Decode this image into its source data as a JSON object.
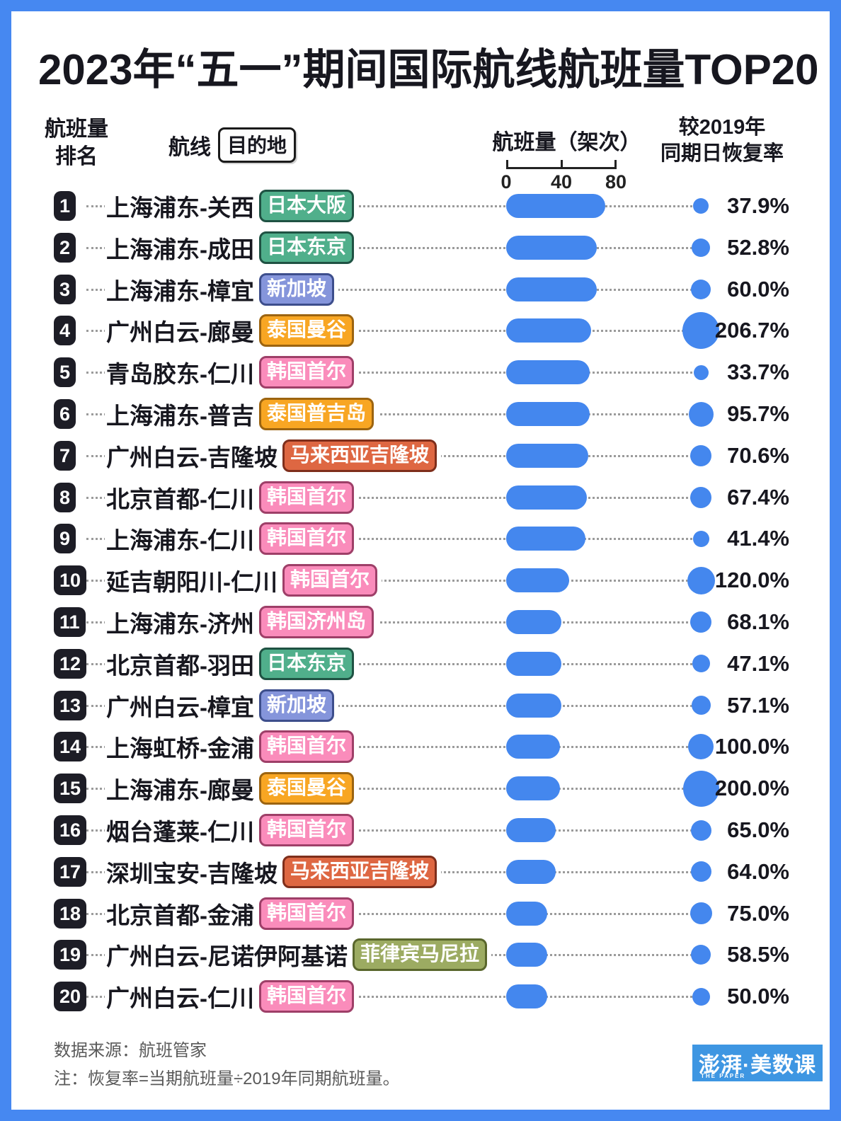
{
  "title": "2023年“五一”期间国际航线航班量TOP20",
  "header": {
    "rank_label_line1": "航班量",
    "rank_label_line2": "排名",
    "route_label": "航线",
    "destination_label": "目的地",
    "flights_label": "航班量（架次）",
    "recovery_label_line1": "较2019年",
    "recovery_label_line2": "同期日恢复率",
    "axis_ticks": [
      "0",
      "40",
      "80"
    ]
  },
  "colors": {
    "frame_blue": "#4688F1",
    "bar_blue": "#4487EE",
    "badge_black": "#1d1d26",
    "leader_gray": "#9b9b9b",
    "logo_blue": "#3E96E2"
  },
  "tag_colors": {
    "japan_green": {
      "bg": "#50AF8B",
      "border": "#1F5243"
    },
    "singapore_blue": {
      "bg": "#8595DB",
      "border": "#3D4E8C"
    },
    "thailand_orange": {
      "bg": "#F8A623",
      "border": "#9C6410"
    },
    "korea_pink": {
      "bg": "#FA8CBB",
      "border": "#9E3F68"
    },
    "malaysia_red": {
      "bg": "#DE6742",
      "border": "#7E2E1B"
    },
    "philippines_olive": {
      "bg": "#9CAB62",
      "border": "#59662C"
    }
  },
  "rows": [
    {
      "rank": "1",
      "route": "上海浦东-关西",
      "destination": "日本大阪",
      "tag_color": "japan_green",
      "flights": 72,
      "recovery_pct": 37.9,
      "recovery_label": "37.9%"
    },
    {
      "rank": "2",
      "route": "上海浦东-成田",
      "destination": "日本东京",
      "tag_color": "japan_green",
      "flights": 66,
      "recovery_pct": 52.8,
      "recovery_label": "52.8%"
    },
    {
      "rank": "3",
      "route": "上海浦东-樟宜",
      "destination": "新加坡",
      "tag_color": "singapore_blue",
      "flights": 66,
      "recovery_pct": 60.0,
      "recovery_label": "60.0%"
    },
    {
      "rank": "4",
      "route": "广州白云-廊曼",
      "destination": "泰国曼谷",
      "tag_color": "thailand_orange",
      "flights": 62,
      "recovery_pct": 206.7,
      "recovery_label": "206.7%"
    },
    {
      "rank": "5",
      "route": "青岛胶东-仁川",
      "destination": "韩国首尔",
      "tag_color": "korea_pink",
      "flights": 61,
      "recovery_pct": 33.7,
      "recovery_label": "33.7%"
    },
    {
      "rank": "6",
      "route": "上海浦东-普吉",
      "destination": "泰国普吉岛",
      "tag_color": "thailand_orange",
      "flights": 61,
      "recovery_pct": 95.7,
      "recovery_label": "95.7%"
    },
    {
      "rank": "7",
      "route": "广州白云-吉隆坡",
      "destination": "马来西亚吉隆坡",
      "tag_color": "malaysia_red",
      "flights": 60,
      "recovery_pct": 70.6,
      "recovery_label": "70.6%"
    },
    {
      "rank": "8",
      "route": "北京首都-仁川",
      "destination": "韩国首尔",
      "tag_color": "korea_pink",
      "flights": 59,
      "recovery_pct": 67.4,
      "recovery_label": "67.4%"
    },
    {
      "rank": "9",
      "route": "上海浦东-仁川",
      "destination": "韩国首尔",
      "tag_color": "korea_pink",
      "flights": 58,
      "recovery_pct": 41.4,
      "recovery_label": "41.4%"
    },
    {
      "rank": "10",
      "route": "延吉朝阳川-仁川",
      "destination": "韩国首尔",
      "tag_color": "korea_pink",
      "flights": 46,
      "recovery_pct": 120.0,
      "recovery_label": "120.0%"
    },
    {
      "rank": "11",
      "route": "上海浦东-济州",
      "destination": "韩国济州岛",
      "tag_color": "korea_pink",
      "flights": 40,
      "recovery_pct": 68.1,
      "recovery_label": "68.1%"
    },
    {
      "rank": "12",
      "route": "北京首都-羽田",
      "destination": "日本东京",
      "tag_color": "japan_green",
      "flights": 40,
      "recovery_pct": 47.1,
      "recovery_label": "47.1%"
    },
    {
      "rank": "13",
      "route": "广州白云-樟宜",
      "destination": "新加坡",
      "tag_color": "singapore_blue",
      "flights": 40,
      "recovery_pct": 57.1,
      "recovery_label": "57.1%"
    },
    {
      "rank": "14",
      "route": "上海虹桥-金浦",
      "destination": "韩国首尔",
      "tag_color": "korea_pink",
      "flights": 39,
      "recovery_pct": 100.0,
      "recovery_label": "100.0%"
    },
    {
      "rank": "15",
      "route": "上海浦东-廊曼",
      "destination": "泰国曼谷",
      "tag_color": "thailand_orange",
      "flights": 39,
      "recovery_pct": 200.0,
      "recovery_label": "200.0%"
    },
    {
      "rank": "16",
      "route": "烟台蓬莱-仁川",
      "destination": "韩国首尔",
      "tag_color": "korea_pink",
      "flights": 36,
      "recovery_pct": 65.0,
      "recovery_label": "65.0%"
    },
    {
      "rank": "17",
      "route": "深圳宝安-吉隆坡",
      "destination": "马来西亚吉隆坡",
      "tag_color": "malaysia_red",
      "flights": 36,
      "recovery_pct": 64.0,
      "recovery_label": "64.0%"
    },
    {
      "rank": "18",
      "route": "北京首都-金浦",
      "destination": "韩国首尔",
      "tag_color": "korea_pink",
      "flights": 30,
      "recovery_pct": 75.0,
      "recovery_label": "75.0%"
    },
    {
      "rank": "19",
      "route": "广州白云-尼诺伊阿基诺",
      "destination": "菲律宾马尼拉",
      "tag_color": "philippines_olive",
      "flights": 30,
      "recovery_pct": 58.5,
      "recovery_label": "58.5%"
    },
    {
      "rank": "20",
      "route": "广州白云-仁川",
      "destination": "韩国首尔",
      "tag_color": "korea_pink",
      "flights": 30,
      "recovery_pct": 50.0,
      "recovery_label": "50.0%"
    }
  ],
  "chart_data": {
    "type": "bar",
    "title": "2023年“五一”期间国际航线航班量TOP20",
    "categories": [
      "上海浦东-关西",
      "上海浦东-成田",
      "上海浦东-樟宜",
      "广州白云-廊曼",
      "青岛胶东-仁川",
      "上海浦东-普吉",
      "广州白云-吉隆坡",
      "北京首都-仁川",
      "上海浦东-仁川",
      "延吉朝阳川-仁川",
      "上海浦东-济州",
      "北京首都-羽田",
      "广州白云-樟宜",
      "上海虹桥-金浦",
      "上海浦东-廊曼",
      "烟台蓬莱-仁川",
      "深圳宝安-吉隆坡",
      "北京首都-金浦",
      "广州白云-尼诺伊阿基诺",
      "广州白云-仁川"
    ],
    "destinations": [
      "日本大阪",
      "日本东京",
      "新加坡",
      "泰国曼谷",
      "韩国首尔",
      "泰国普吉岛",
      "马来西亚吉隆坡",
      "韩国首尔",
      "韩国首尔",
      "韩国首尔",
      "韩国济州岛",
      "日本东京",
      "新加坡",
      "韩国首尔",
      "泰国曼谷",
      "韩国首尔",
      "马来西亚吉隆坡",
      "韩国首尔",
      "菲律宾马尼拉",
      "韩国首尔"
    ],
    "series": [
      {
        "name": "航班量（架次）",
        "values": [
          72,
          66,
          66,
          62,
          61,
          61,
          60,
          59,
          58,
          46,
          40,
          40,
          40,
          39,
          39,
          36,
          36,
          30,
          30,
          30
        ]
      },
      {
        "name": "较2019年同期日恢复率(%)",
        "values": [
          37.9,
          52.8,
          60.0,
          206.7,
          33.7,
          95.7,
          70.6,
          67.4,
          41.4,
          120.0,
          68.1,
          47.1,
          57.1,
          100.0,
          200.0,
          65.0,
          64.0,
          75.0,
          58.5,
          50.0
        ]
      }
    ],
    "xlabel": "航班量（架次）",
    "xlim": [
      0,
      80
    ],
    "axis_ticks": [
      0,
      40,
      80
    ],
    "legend_position": "none",
    "grid": false
  },
  "footer": {
    "source": "数据来源：航班管家",
    "note": "注：恢复率=当期航班量÷2019年同期航班量。",
    "logo": "澎湃·美数课",
    "logo_sub": "THE PAPER"
  }
}
